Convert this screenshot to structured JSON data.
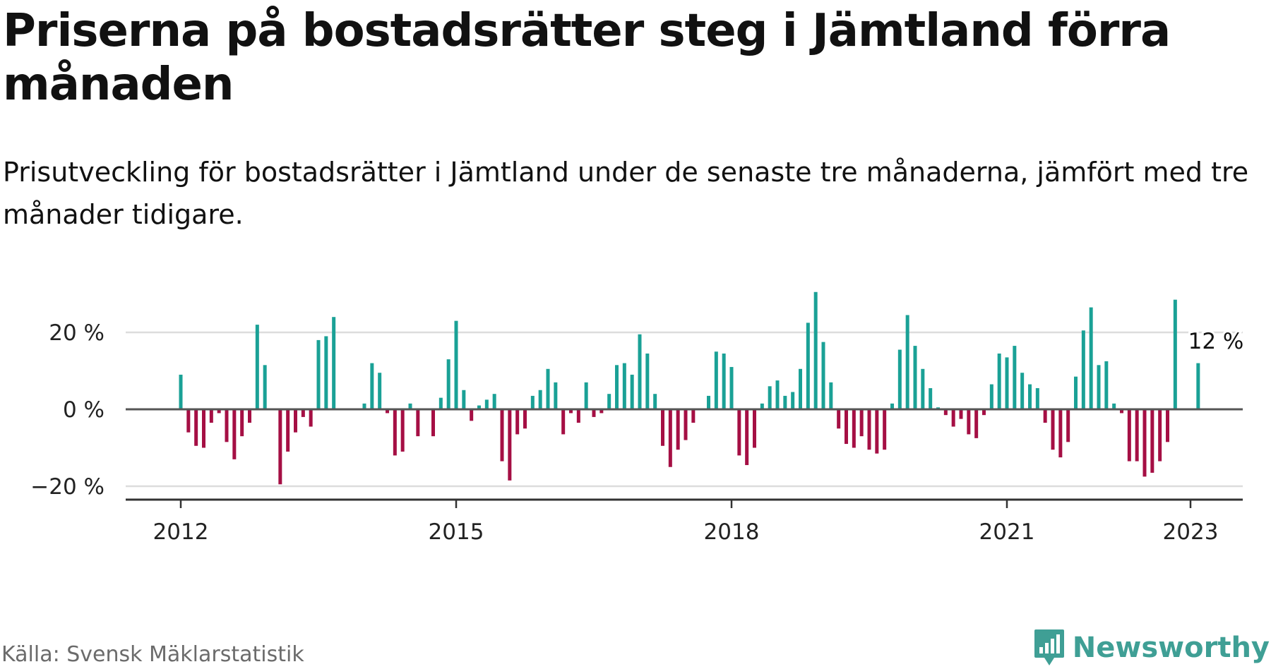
{
  "header": {
    "title": "Priserna på bostadsrätter steg i Jämtland förra månaden",
    "subtitle": "Prisutveckling för bostadsrätter i Jämtland under de senaste tre månaderna, jämfört med tre månader tidigare."
  },
  "footer": {
    "source": "Källa: Svensk Mäklarstatistik",
    "brand": "Newsworthy",
    "brand_icon": "bar-chart-speech-bubble-icon"
  },
  "colors": {
    "positive": "#1aa196",
    "negative": "#a50f44",
    "brand": "#3f9f95",
    "grid": "#dddddd",
    "zero_line": "#555555"
  },
  "chart_data": {
    "type": "bar",
    "title": "",
    "xlabel": "",
    "ylabel": "",
    "ylim": [
      -24,
      31
    ],
    "y_ticks": [
      {
        "value": -20,
        "label": "−20 %"
      },
      {
        "value": 0,
        "label": "0 %"
      },
      {
        "value": 20,
        "label": "20 %"
      }
    ],
    "x_ticks": [
      {
        "value": 2012.0,
        "label": "2012"
      },
      {
        "value": 2015.0,
        "label": "2015"
      },
      {
        "value": 2018.0,
        "label": "2018"
      },
      {
        "value": 2021.0,
        "label": "2021"
      },
      {
        "value": 2023.0,
        "label": "2023"
      }
    ],
    "grid": true,
    "annotation": {
      "label": "12 %",
      "x": 2023.0,
      "y": 12
    },
    "series": [
      {
        "start": "2012-01",
        "frequency": "monthly",
        "values": [
          9,
          -6,
          -9.5,
          -10,
          -3.5,
          -1,
          -8.5,
          -13,
          -7,
          -3.5,
          22,
          11.5,
          null,
          -19.5,
          -11,
          -6,
          -2,
          -4.5,
          18,
          19,
          24,
          null,
          null,
          null,
          1.5,
          12,
          9.5,
          -1,
          -12,
          -11,
          1.5,
          -7,
          null,
          -7,
          3,
          13,
          23,
          5,
          -3,
          1,
          2.5,
          4,
          -13.5,
          -18.5,
          -6.5,
          -5,
          3.5,
          5,
          10.5,
          7,
          -6.5,
          -1,
          -3.5,
          7,
          -2,
          -1,
          4,
          11.5,
          12,
          9,
          19.5,
          14.5,
          4,
          -9.5,
          -15,
          -10.5,
          -8,
          -3.5,
          null,
          3.5,
          15,
          14.5,
          11,
          -12,
          -14.5,
          -10,
          1.5,
          6,
          7.5,
          3.5,
          4.5,
          10.5,
          22.5,
          30.5,
          17.5,
          7,
          -5,
          -9,
          -10,
          -7,
          -10.5,
          -11.5,
          -10.5,
          1.5,
          15.5,
          24.5,
          16.5,
          10.5,
          5.5,
          0.5,
          -1.5,
          -4.5,
          -2.5,
          -6.5,
          -7.5,
          -1.5,
          6.5,
          14.5,
          13.5,
          16.5,
          9.5,
          6.5,
          5.5,
          -3.5,
          -10.5,
          -12.5,
          -8.5,
          8.5,
          20.5,
          26.5,
          11.5,
          12.5,
          1.5,
          -1,
          -13.5,
          -13.5,
          -17.5,
          -16.5,
          -13.5,
          -8.5,
          28.5,
          null,
          null,
          12
        ]
      }
    ]
  }
}
